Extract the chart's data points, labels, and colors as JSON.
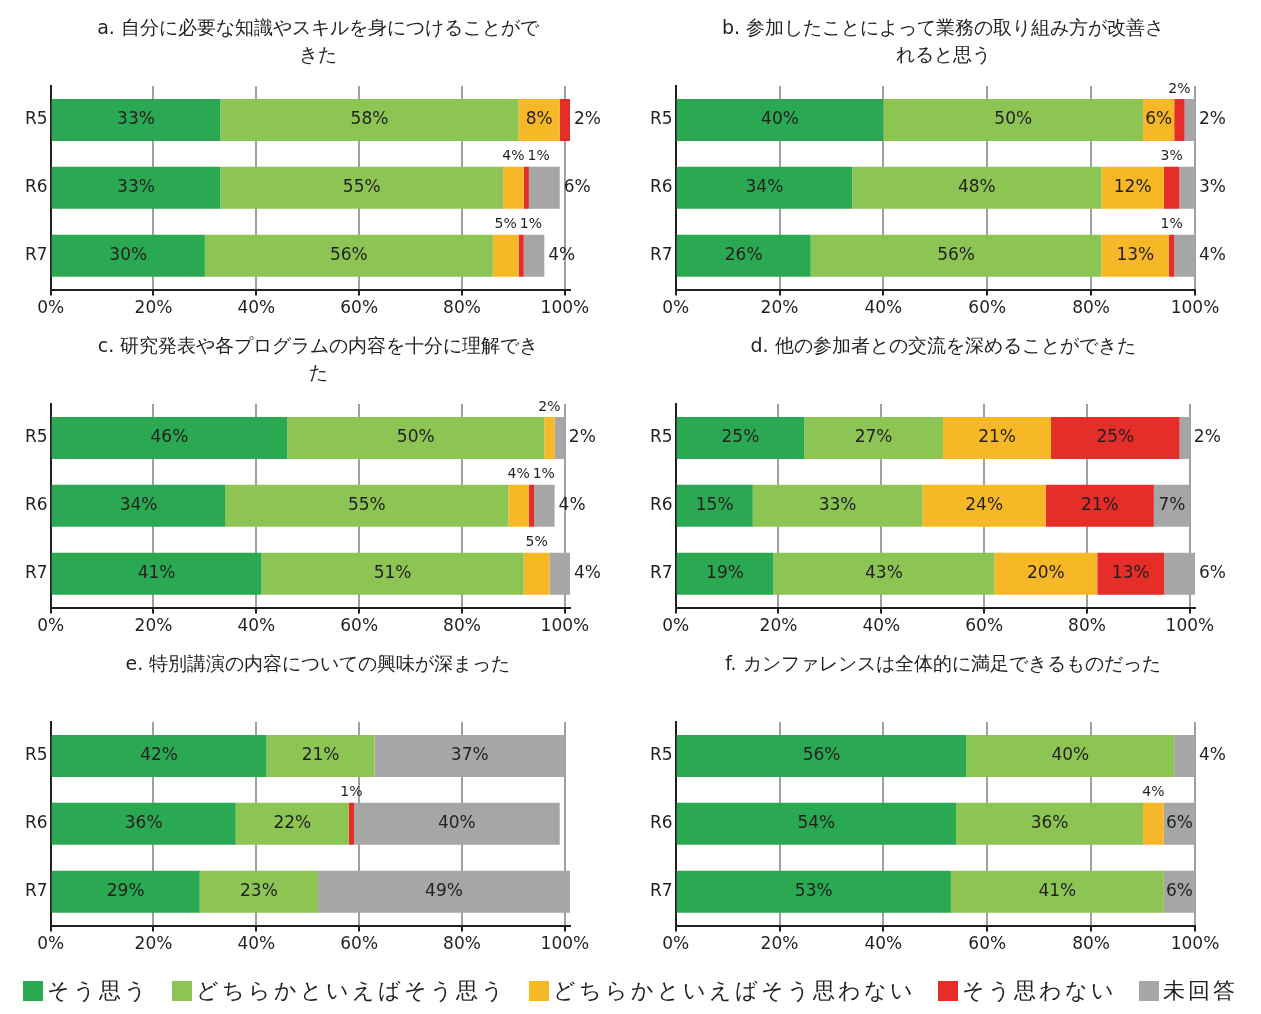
{
  "chart_data": [
    {
      "type": "bar",
      "orientation": "horizontal",
      "stacked": true,
      "title": "a. 自分に必要な知識やスキルを身につけることができた",
      "categories": [
        "R5",
        "R6",
        "R7"
      ],
      "xlim": [
        0,
        101
      ],
      "xticks": [
        {
          "value": 0,
          "label": "0%"
        },
        {
          "value": 20,
          "label": "20%"
        },
        {
          "value": 40,
          "label": "40%"
        },
        {
          "value": 60,
          "label": "60%"
        },
        {
          "value": 80,
          "label": "80%"
        },
        {
          "value": 100,
          "label": "100%"
        }
      ],
      "grid": "x",
      "series": [
        {
          "color": "#2aa852",
          "values": [
            33,
            33,
            30
          ],
          "value_labels": [
            "33%",
            "33%",
            "30%"
          ]
        },
        {
          "color": "#8dc555",
          "values": [
            58,
            55,
            56
          ],
          "value_labels": [
            "58%",
            "55%",
            "56%"
          ]
        },
        {
          "color": "#f6b826",
          "values": [
            8,
            4,
            5
          ],
          "value_labels": [
            "8%",
            "4%",
            "5%"
          ]
        },
        {
          "color": "#e52d29",
          "values": [
            2,
            1,
            1
          ],
          "value_labels": [
            "2%",
            "1%",
            "1%"
          ]
        },
        {
          "color": "#a6a6a6",
          "values": [
            null,
            6,
            4
          ],
          "value_labels": [
            null,
            "6%",
            "4%"
          ]
        }
      ]
    },
    {
      "type": "bar",
      "orientation": "horizontal",
      "stacked": true,
      "title": "b. 参加したことによって業務の取り組み方が改善されると思う",
      "categories": [
        "R5",
        "R6",
        "R7"
      ],
      "xlim": [
        0,
        100
      ],
      "xticks": [
        {
          "value": 0,
          "label": "0%"
        },
        {
          "value": 20,
          "label": "20%"
        },
        {
          "value": 40,
          "label": "40%"
        },
        {
          "value": 60,
          "label": "60%"
        },
        {
          "value": 80,
          "label": "80%"
        },
        {
          "value": 100,
          "label": "100%"
        }
      ],
      "grid": "x",
      "series": [
        {
          "color": "#2aa852",
          "values": [
            40,
            34,
            26
          ],
          "value_labels": [
            "40%",
            "34%",
            "26%"
          ]
        },
        {
          "color": "#8dc555",
          "values": [
            50,
            48,
            56
          ],
          "value_labels": [
            "50%",
            "48%",
            "56%"
          ]
        },
        {
          "color": "#f6b826",
          "values": [
            6,
            12,
            13
          ],
          "value_labels": [
            "6%",
            "12%",
            "13%"
          ]
        },
        {
          "color": "#e52d29",
          "values": [
            2,
            3,
            1
          ],
          "value_labels": [
            "2%",
            "3%",
            "1%"
          ]
        },
        {
          "color": "#a6a6a6",
          "values": [
            2,
            3,
            4
          ],
          "value_labels": [
            "2%",
            "3%",
            "4%"
          ]
        }
      ]
    },
    {
      "type": "bar",
      "orientation": "horizontal",
      "stacked": true,
      "title": "c. 研究発表や各プログラムの内容を十分に理解できた",
      "categories": [
        "R5",
        "R6",
        "R7"
      ],
      "xlim": [
        0,
        101
      ],
      "xticks": [
        {
          "value": 0,
          "label": "0%"
        },
        {
          "value": 20,
          "label": "20%"
        },
        {
          "value": 40,
          "label": "40%"
        },
        {
          "value": 60,
          "label": "60%"
        },
        {
          "value": 80,
          "label": "80%"
        },
        {
          "value": 100,
          "label": "100%"
        }
      ],
      "grid": "x",
      "series": [
        {
          "color": "#2aa852",
          "values": [
            46,
            34,
            41
          ],
          "value_labels": [
            "46%",
            "34%",
            "41%"
          ]
        },
        {
          "color": "#8dc555",
          "values": [
            50,
            55,
            51
          ],
          "value_labels": [
            "50%",
            "55%",
            "51%"
          ]
        },
        {
          "color": "#f6b826",
          "values": [
            2,
            4,
            5
          ],
          "value_labels": [
            "2%",
            "4%",
            "5%"
          ]
        },
        {
          "color": "#e52d29",
          "values": [
            null,
            1,
            null
          ],
          "value_labels": [
            null,
            "1%",
            null
          ]
        },
        {
          "color": "#a6a6a6",
          "values": [
            2,
            4,
            4
          ],
          "value_labels": [
            "2%",
            "4%",
            "4%"
          ]
        }
      ]
    },
    {
      "type": "bar",
      "orientation": "horizontal",
      "stacked": true,
      "title": "d. 他の参加者との交流を深めることができた",
      "categories": [
        "R5",
        "R6",
        "R7"
      ],
      "xlim": [
        0,
        101
      ],
      "xticks": [
        {
          "value": 0,
          "label": "0%"
        },
        {
          "value": 20,
          "label": "20%"
        },
        {
          "value": 40,
          "label": "40%"
        },
        {
          "value": 60,
          "label": "60%"
        },
        {
          "value": 80,
          "label": "80%"
        },
        {
          "value": 100,
          "label": "100%"
        }
      ],
      "grid": "x",
      "series": [
        {
          "color": "#2aa852",
          "values": [
            25,
            15,
            19
          ],
          "value_labels": [
            "25%",
            "15%",
            "19%"
          ]
        },
        {
          "color": "#8dc555",
          "values": [
            27,
            33,
            43
          ],
          "value_labels": [
            "27%",
            "33%",
            "43%"
          ]
        },
        {
          "color": "#f6b826",
          "values": [
            21,
            24,
            20
          ],
          "value_labels": [
            "21%",
            "24%",
            "20%"
          ]
        },
        {
          "color": "#e52d29",
          "values": [
            25,
            21,
            13
          ],
          "value_labels": [
            "25%",
            "21%",
            "13%"
          ]
        },
        {
          "color": "#a6a6a6",
          "values": [
            2,
            7,
            6
          ],
          "value_labels": [
            "2%",
            "7%",
            "6%"
          ]
        }
      ]
    },
    {
      "type": "bar",
      "orientation": "horizontal",
      "stacked": true,
      "title": "e. 特別講演の内容についての興味が深まった",
      "categories": [
        "R5",
        "R6",
        "R7"
      ],
      "xlim": [
        0,
        101
      ],
      "xticks": [
        {
          "value": 0,
          "label": "0%"
        },
        {
          "value": 20,
          "label": "20%"
        },
        {
          "value": 40,
          "label": "40%"
        },
        {
          "value": 60,
          "label": "60%"
        },
        {
          "value": 80,
          "label": "80%"
        },
        {
          "value": 100,
          "label": "100%"
        }
      ],
      "grid": "x",
      "series": [
        {
          "color": "#2aa852",
          "values": [
            42,
            36,
            29
          ],
          "value_labels": [
            "42%",
            "36%",
            "29%"
          ]
        },
        {
          "color": "#8dc555",
          "values": [
            21,
            22,
            23
          ],
          "value_labels": [
            "21%",
            "22%",
            "23%"
          ]
        },
        {
          "color": "#e52d29",
          "values": [
            null,
            1,
            null
          ],
          "value_labels": [
            null,
            "1%",
            null
          ]
        },
        {
          "color": "#a6a6a6",
          "values": [
            37,
            40,
            49
          ],
          "value_labels": [
            "37%",
            "40%",
            "49%"
          ]
        }
      ]
    },
    {
      "type": "bar",
      "orientation": "horizontal",
      "stacked": true,
      "title": "f. カンファレンスは全体的に満足できるものだった",
      "categories": [
        "R5",
        "R6",
        "R7"
      ],
      "xlim": [
        0,
        100
      ],
      "xticks": [
        {
          "value": 0,
          "label": "0%"
        },
        {
          "value": 20,
          "label": "20%"
        },
        {
          "value": 40,
          "label": "40%"
        },
        {
          "value": 60,
          "label": "60%"
        },
        {
          "value": 80,
          "label": "80%"
        },
        {
          "value": 100,
          "label": "100%"
        }
      ],
      "grid": "x",
      "legend": "bottom",
      "series": [
        {
          "name": "そう思う",
          "color": "#2aa852",
          "values": [
            56,
            54,
            53
          ],
          "value_labels": [
            "56%",
            "54%",
            "53%"
          ]
        },
        {
          "name": "どちらかといえばそう思う",
          "color": "#8dc555",
          "values": [
            40,
            36,
            41
          ],
          "value_labels": [
            "40%",
            "36%",
            "41%"
          ]
        },
        {
          "name": "どちらかといえばそう思わない",
          "color": "#f6b826",
          "values": [
            null,
            4,
            null
          ],
          "value_labels": [
            null,
            "4%",
            null
          ]
        },
        {
          "name": "そう思わない",
          "color": "#e52d29",
          "values": [
            null,
            null,
            null
          ]
        },
        {
          "name": "未回答",
          "color": "#a6a6a6",
          "values": [
            4,
            6,
            6
          ],
          "value_labels": [
            "4%",
            "6%",
            "6%"
          ]
        }
      ]
    }
  ]
}
